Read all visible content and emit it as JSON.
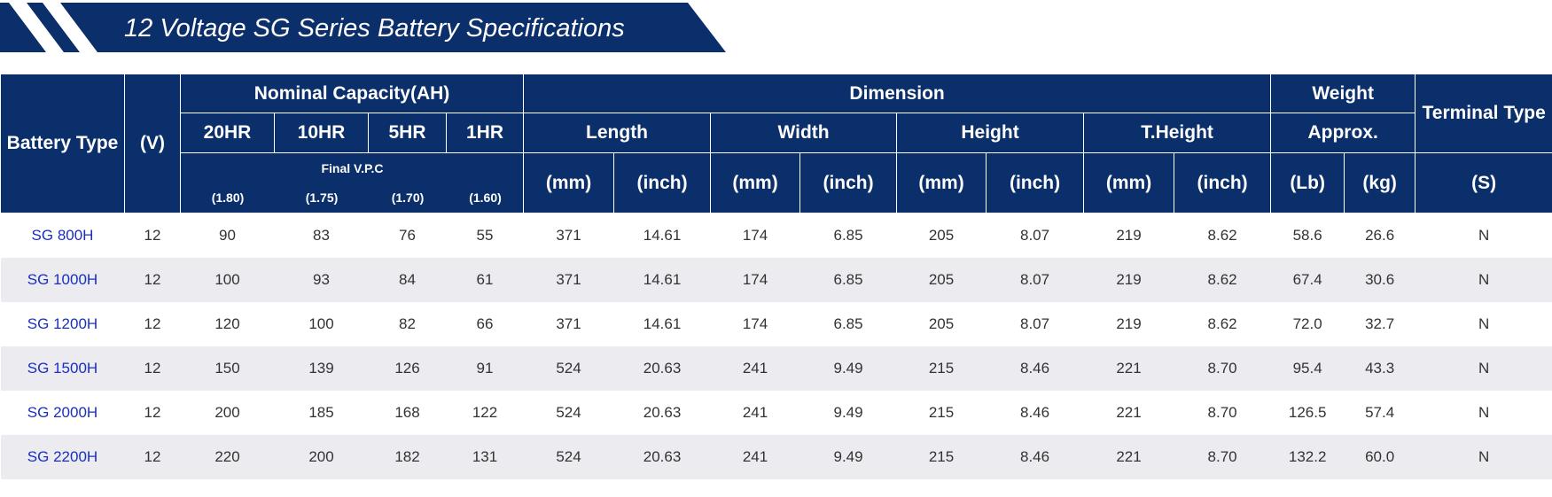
{
  "header": {
    "title": "12 Voltage SG Series Battery Specifications"
  },
  "table": {
    "header": {
      "battery_type": "Battery Type",
      "voltage": "(V)",
      "nominal_capacity": "Nominal Capacity(AH)",
      "dimension": "Dimension",
      "weight": "Weight",
      "terminal_type": "Terminal Type",
      "rates": [
        "20HR",
        "10HR",
        "5HR",
        "1HR"
      ],
      "dims": [
        "Length",
        "Width",
        "Height",
        "T.Height"
      ],
      "approx": "Approx.",
      "final_vpc": "Final V.P.C",
      "vpc_values": [
        "(1.80)",
        "(1.75)",
        "(1.70)",
        "(1.60)"
      ],
      "units": [
        "(mm)",
        "(inch)",
        "(mm)",
        "(inch)",
        "(mm)",
        "(inch)",
        "(mm)",
        "(inch)",
        "(Lb)",
        "(kg)",
        "(S)"
      ]
    },
    "rows": [
      [
        "SG 800H",
        "12",
        "90",
        "83",
        "76",
        "55",
        "371",
        "14.61",
        "174",
        "6.85",
        "205",
        "8.07",
        "219",
        "8.62",
        "58.6",
        "26.6",
        "N"
      ],
      [
        "SG 1000H",
        "12",
        "100",
        "93",
        "84",
        "61",
        "371",
        "14.61",
        "174",
        "6.85",
        "205",
        "8.07",
        "219",
        "8.62",
        "67.4",
        "30.6",
        "N"
      ],
      [
        "SG 1200H",
        "12",
        "120",
        "100",
        "82",
        "66",
        "371",
        "14.61",
        "174",
        "6.85",
        "205",
        "8.07",
        "219",
        "8.62",
        "72.0",
        "32.7",
        "N"
      ],
      [
        "SG 1500H",
        "12",
        "150",
        "139",
        "126",
        "91",
        "524",
        "20.63",
        "241",
        "9.49",
        "215",
        "8.46",
        "221",
        "8.70",
        "95.4",
        "43.3",
        "N"
      ],
      [
        "SG 2000H",
        "12",
        "200",
        "185",
        "168",
        "122",
        "524",
        "20.63",
        "241",
        "9.49",
        "215",
        "8.46",
        "221",
        "8.70",
        "126.5",
        "57.4",
        "N"
      ],
      [
        "SG 2200H",
        "12",
        "220",
        "200",
        "182",
        "131",
        "524",
        "20.63",
        "241",
        "9.49",
        "215",
        "8.46",
        "221",
        "8.70",
        "132.2",
        "60.0",
        "N"
      ]
    ]
  }
}
